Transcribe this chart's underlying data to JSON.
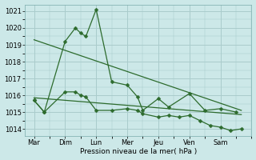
{
  "xlabel": "Pression niveau de la mer( hPa )",
  "background_color": "#cce8e8",
  "grid_color": "#aacccc",
  "line_color": "#2d6b2d",
  "xlim": [
    -0.3,
    7.0
  ],
  "ylim": [
    1013.6,
    1021.4
  ],
  "yticks": [
    1014,
    1015,
    1016,
    1017,
    1018,
    1019,
    1020,
    1021
  ],
  "xtick_labels": [
    "Mar",
    "Dim",
    "Lun",
    "Mer",
    "Jeu",
    "Ven",
    "Sam"
  ],
  "xtick_positions": [
    0,
    1,
    2,
    3,
    4,
    5,
    6
  ],
  "upper_x": [
    0.0,
    0.33,
    1.0,
    1.33,
    1.5,
    1.67,
    2.0,
    2.5,
    3.0,
    3.33,
    3.5,
    4.0,
    4.33,
    5.0,
    5.5,
    6.0,
    6.5
  ],
  "upper_y": [
    1015.7,
    1015.0,
    1019.2,
    1020.0,
    1019.7,
    1019.5,
    1021.1,
    1016.8,
    1016.6,
    1015.9,
    1015.1,
    1015.8,
    1015.3,
    1016.1,
    1015.1,
    1015.2,
    1015.0
  ],
  "lower_x": [
    0.0,
    0.33,
    1.0,
    1.33,
    1.5,
    1.67,
    2.0,
    2.5,
    3.0,
    3.33,
    3.5,
    4.0,
    4.33,
    4.67,
    5.0,
    5.33,
    5.67,
    6.0,
    6.33,
    6.67
  ],
  "lower_y": [
    1015.7,
    1015.0,
    1016.2,
    1016.2,
    1016.0,
    1015.9,
    1015.1,
    1015.1,
    1015.2,
    1015.1,
    1014.9,
    1014.7,
    1014.8,
    1014.7,
    1014.8,
    1014.5,
    1014.2,
    1014.1,
    1013.9,
    1014.0
  ],
  "trend1_x": [
    0.0,
    6.67
  ],
  "trend1_y": [
    1019.3,
    1015.1
  ],
  "trend2_x": [
    0.0,
    6.67
  ],
  "trend2_y": [
    1015.85,
    1014.85
  ]
}
